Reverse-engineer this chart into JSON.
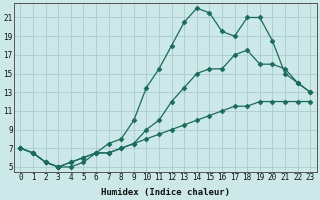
{
  "xlabel": "Humidex (Indice chaleur)",
  "background_color": "#cce8e8",
  "grid_color": "#aacccc",
  "line_color": "#1a6b5a",
  "xlim": [
    -0.5,
    23.5
  ],
  "ylim": [
    4.5,
    22.5
  ],
  "yticks": [
    5,
    7,
    9,
    11,
    13,
    15,
    17,
    19,
    21
  ],
  "xticks": [
    0,
    1,
    2,
    3,
    4,
    5,
    6,
    7,
    8,
    9,
    10,
    11,
    12,
    13,
    14,
    15,
    16,
    17,
    18,
    19,
    20,
    21,
    22,
    23
  ],
  "line1_x": [
    0,
    1,
    2,
    3,
    4,
    5,
    6,
    7,
    8,
    9,
    10,
    11,
    12,
    13,
    14,
    15,
    16,
    17,
    18,
    19,
    20,
    21,
    22,
    23
  ],
  "line1_y": [
    7,
    6.5,
    5.5,
    5,
    5,
    5.5,
    6.5,
    7.5,
    8,
    10,
    13.5,
    15.5,
    18,
    20.5,
    22,
    21.5,
    19.5,
    19,
    21,
    21,
    18.5,
    15,
    14,
    13
  ],
  "line2_x": [
    0,
    1,
    2,
    3,
    4,
    5,
    6,
    7,
    8,
    9,
    10,
    11,
    12,
    13,
    14,
    15,
    16,
    17,
    18,
    19,
    20,
    21,
    22,
    23
  ],
  "line2_y": [
    7,
    6.5,
    5.5,
    5,
    5.5,
    6,
    6.5,
    6.5,
    7,
    7.5,
    9,
    10,
    12,
    13.5,
    15,
    15.5,
    15.5,
    17,
    17.5,
    16,
    16,
    15.5,
    14,
    13
  ],
  "line3_x": [
    0,
    1,
    2,
    3,
    4,
    5,
    6,
    7,
    8,
    9,
    10,
    11,
    12,
    13,
    14,
    15,
    16,
    17,
    18,
    19,
    20,
    21,
    22,
    23
  ],
  "line3_y": [
    7,
    6.5,
    5.5,
    5,
    5.5,
    6,
    6.5,
    6.5,
    7,
    7.5,
    8,
    8.5,
    9,
    9.5,
    10,
    10.5,
    11,
    11.5,
    11.5,
    12,
    12,
    12,
    12,
    12
  ]
}
